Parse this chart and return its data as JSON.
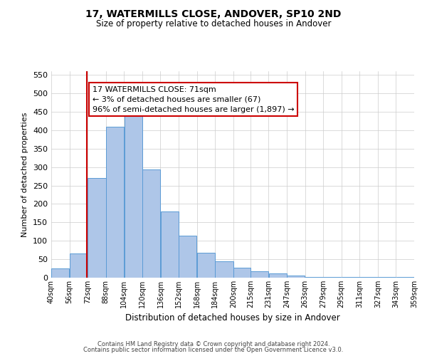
{
  "title": "17, WATERMILLS CLOSE, ANDOVER, SP10 2ND",
  "subtitle": "Size of property relative to detached houses in Andover",
  "xlabel": "Distribution of detached houses by size in Andover",
  "ylabel": "Number of detached properties",
  "bar_edges": [
    40,
    56,
    72,
    88,
    104,
    120,
    136,
    152,
    168,
    184,
    200,
    215,
    231,
    247,
    263,
    279,
    295,
    311,
    327,
    343,
    359
  ],
  "bar_heights": [
    25,
    65,
    270,
    410,
    455,
    293,
    180,
    113,
    67,
    44,
    27,
    18,
    12,
    5,
    2,
    2,
    1,
    1,
    1,
    1
  ],
  "bar_color": "#aec6e8",
  "bar_edgecolor": "#5b9bd5",
  "property_line_x": 71,
  "property_line_color": "#cc0000",
  "annotation_line1": "17 WATERMILLS CLOSE: 71sqm",
  "annotation_line2": "← 3% of detached houses are smaller (67)",
  "annotation_line3": "96% of semi-detached houses are larger (1,897) →",
  "annotation_box_edgecolor": "#cc0000",
  "annotation_box_facecolor": "#ffffff",
  "ylim": [
    0,
    560
  ],
  "yticks": [
    0,
    50,
    100,
    150,
    200,
    250,
    300,
    350,
    400,
    450,
    500,
    550
  ],
  "tick_labels": [
    "40sqm",
    "56sqm",
    "72sqm",
    "88sqm",
    "104sqm",
    "120sqm",
    "136sqm",
    "152sqm",
    "168sqm",
    "184sqm",
    "200sqm",
    "215sqm",
    "231sqm",
    "247sqm",
    "263sqm",
    "279sqm",
    "295sqm",
    "311sqm",
    "327sqm",
    "343sqm",
    "359sqm"
  ],
  "footer_line1": "Contains HM Land Registry data © Crown copyright and database right 2024.",
  "footer_line2": "Contains public sector information licensed under the Open Government Licence v3.0.",
  "bg_color": "#ffffff",
  "grid_color": "#cccccc",
  "title_fontsize": 10,
  "subtitle_fontsize": 8.5,
  "ylabel_fontsize": 8,
  "xlabel_fontsize": 8.5,
  "ytick_fontsize": 8,
  "xtick_fontsize": 7,
  "annot_fontsize": 8,
  "footer_fontsize": 6
}
